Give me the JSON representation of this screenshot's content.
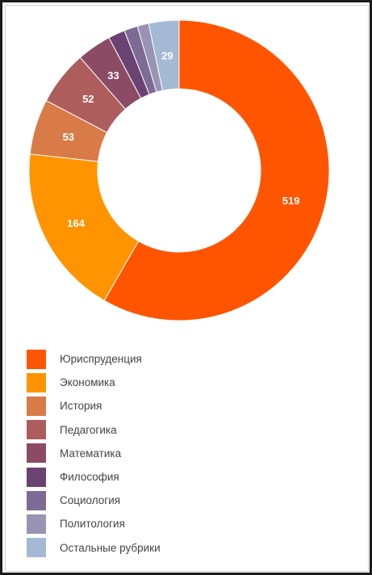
{
  "chart_data": {
    "type": "pie",
    "categories": [
      "Юриспруденция",
      "Экономика",
      "История",
      "Педагогика",
      "Математика",
      "Философия",
      "Социология",
      "Политология",
      "Остальные рубрики"
    ],
    "values": [
      519,
      164,
      53,
      52,
      33,
      16,
      13,
      11,
      29
    ],
    "data_labels": [
      "519",
      "164",
      "53",
      "52",
      "33",
      "",
      "",
      "",
      "29"
    ],
    "colors": [
      "#ff5500",
      "#ff9400",
      "#d87b47",
      "#ae5d5d",
      "#8c4b64",
      "#6a4373",
      "#7d6a95",
      "#9a94b4",
      "#a4b9d3"
    ],
    "style": "donut",
    "legend_position": "bottom-left"
  }
}
